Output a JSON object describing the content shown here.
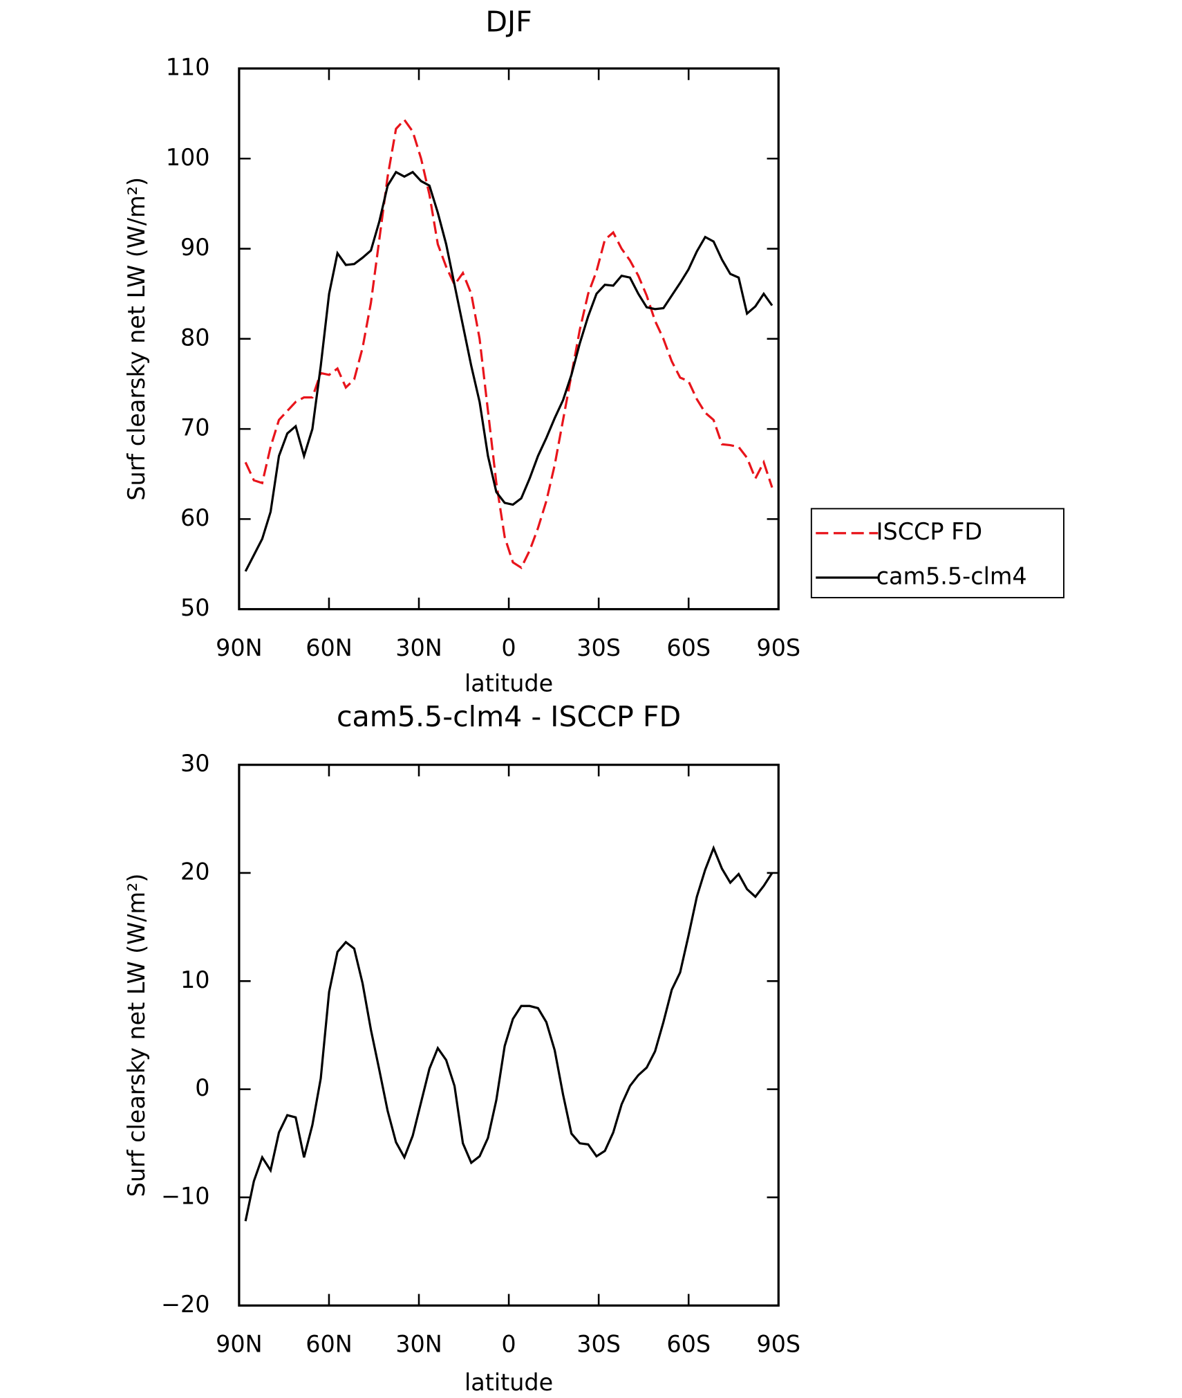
{
  "chart_data": [
    {
      "type": "line",
      "title": "DJF",
      "xlabel": "latitude",
      "ylabel": "Surf clearsky net LW (W/m²)",
      "xlim": [
        90,
        -90
      ],
      "xticks": [
        {
          "value": 90,
          "label": "90N"
        },
        {
          "value": 60,
          "label": "60N"
        },
        {
          "value": 30,
          "label": "30N"
        },
        0,
        {
          "value": -30,
          "label": "30S"
        },
        {
          "value": -60,
          "label": "60S"
        },
        {
          "value": -90,
          "label": "90S"
        }
      ],
      "ylim": [
        50,
        110
      ],
      "yticks": [
        50,
        60,
        70,
        80,
        90,
        100,
        110
      ],
      "legend": "right",
      "x": [
        87.86,
        85.07,
        82.28,
        79.49,
        76.7,
        73.91,
        71.12,
        68.33,
        65.54,
        62.75,
        59.96,
        57.17,
        54.38,
        51.59,
        48.8,
        46.01,
        43.22,
        40.43,
        37.64,
        34.85,
        32.06,
        29.27,
        26.48,
        23.69,
        20.9,
        18.11,
        15.32,
        12.53,
        9.74,
        6.95,
        4.16,
        1.37,
        -1.37,
        -4.16,
        -6.95,
        -9.74,
        -12.53,
        -15.32,
        -18.11,
        -20.9,
        -23.69,
        -26.48,
        -29.27,
        -32.06,
        -34.85,
        -37.64,
        -40.43,
        -43.22,
        -46.01,
        -48.8,
        -51.59,
        -54.38,
        -57.17,
        -59.96,
        -62.75,
        -65.54,
        -68.33,
        -71.12,
        -73.91,
        -76.7,
        -79.49,
        -82.28,
        -85.07,
        -87.86
      ],
      "series": [
        {
          "name": "ISCCP FD",
          "color": "#e8141b",
          "linestyle": "dashed",
          "values": [
            66.3,
            64.3,
            64,
            68,
            71,
            72,
            73,
            73.5,
            73.5,
            76.2,
            76,
            76.7,
            74.6,
            75.5,
            79,
            84,
            91,
            98,
            103.3,
            104.3,
            103,
            100,
            96,
            90.5,
            88,
            86,
            87.3,
            85,
            80,
            72,
            64,
            58,
            55.2,
            54.6,
            56.5,
            59,
            62,
            66,
            71,
            76,
            81,
            85,
            87.5,
            91,
            91.8,
            90,
            88.7,
            87,
            84.8,
            82,
            80,
            77.5,
            75.7,
            75.3,
            73.3,
            71.8,
            71,
            68.3,
            68.2,
            68,
            66.8,
            64.5,
            66.3,
            63.5
          ]
        },
        {
          "name": "cam5.5-clm4",
          "color": "#000000",
          "linestyle": "solid",
          "values": [
            54.2,
            56,
            57.8,
            60.8,
            67,
            69.5,
            70.3,
            67,
            70,
            77,
            85,
            89.5,
            88.2,
            88.3,
            89,
            89.8,
            93,
            97,
            98.5,
            98,
            98.5,
            97.5,
            97,
            94,
            90.5,
            86,
            81.5,
            77,
            73,
            67,
            63,
            61.8,
            61.6,
            62.3,
            64.5,
            67,
            69,
            71.2,
            73.2,
            76,
            79.5,
            82.5,
            85,
            86,
            85.9,
            87,
            86.8,
            85,
            83.5,
            83.3,
            83.4,
            84.8,
            86.2,
            87.7,
            89.7,
            91.3,
            90.8,
            88.8,
            87.2,
            86.8,
            82.8,
            83.6,
            85,
            83.7
          ]
        }
      ]
    },
    {
      "type": "line",
      "title": "cam5.5-clm4 - ISCCP FD",
      "xlabel": "latitude",
      "ylabel": "Surf clearsky net LW (W/m²)",
      "xlim": [
        90,
        -90
      ],
      "xticks": [
        {
          "value": 90,
          "label": "90N"
        },
        {
          "value": 60,
          "label": "60N"
        },
        {
          "value": 30,
          "label": "30N"
        },
        0,
        {
          "value": -30,
          "label": "30S"
        },
        {
          "value": -60,
          "label": "60S"
        },
        {
          "value": -90,
          "label": "90S"
        }
      ],
      "ylim": [
        -20,
        30
      ],
      "yticks": [
        {
          "value": -20,
          "label": "−20"
        },
        {
          "value": -10,
          "label": "−10"
        },
        0,
        10,
        20,
        30
      ],
      "x": [
        87.86,
        85.07,
        82.28,
        79.49,
        76.7,
        73.91,
        71.12,
        68.33,
        65.54,
        62.75,
        59.96,
        57.17,
        54.38,
        51.59,
        48.8,
        46.01,
        43.22,
        40.43,
        37.64,
        34.85,
        32.06,
        29.27,
        26.48,
        23.69,
        20.9,
        18.11,
        15.32,
        12.53,
        9.74,
        6.95,
        4.16,
        1.37,
        -1.37,
        -4.16,
        -6.95,
        -9.74,
        -12.53,
        -15.32,
        -18.11,
        -20.9,
        -23.69,
        -26.48,
        -29.27,
        -32.06,
        -34.85,
        -37.64,
        -40.43,
        -43.22,
        -46.01,
        -48.8,
        -51.59,
        -54.38,
        -57.17,
        -59.96,
        -62.75,
        -65.54,
        -68.33,
        -71.12,
        -73.91,
        -76.7,
        -79.49,
        -82.28,
        -85.07,
        -87.86
      ],
      "series": [
        {
          "color": "#000000",
          "linestyle": "solid",
          "values": [
            -12.2,
            -8.5,
            -6.3,
            -7.5,
            -4,
            -2.4,
            -2.6,
            -6.3,
            -3.3,
            1,
            9,
            12.7,
            13.6,
            13,
            9.8,
            5.5,
            1.8,
            -2,
            -4.9,
            -6.3,
            -4.3,
            -1.2,
            1.9,
            3.8,
            2.7,
            0.3,
            -5,
            -6.8,
            -6.2,
            -4.5,
            -1,
            4,
            6.5,
            7.7,
            7.7,
            7.5,
            6.2,
            3.6,
            -0.5,
            -4.1,
            -5,
            -5.1,
            -6.2,
            -5.7,
            -4,
            -1.4,
            0.3,
            1.3,
            2,
            3.5,
            6.2,
            9.2,
            10.8,
            14.2,
            17.8,
            20.3,
            22.3,
            20.4,
            19.1,
            19.9,
            18.5,
            17.8,
            18.8,
            20
          ]
        }
      ]
    }
  ]
}
